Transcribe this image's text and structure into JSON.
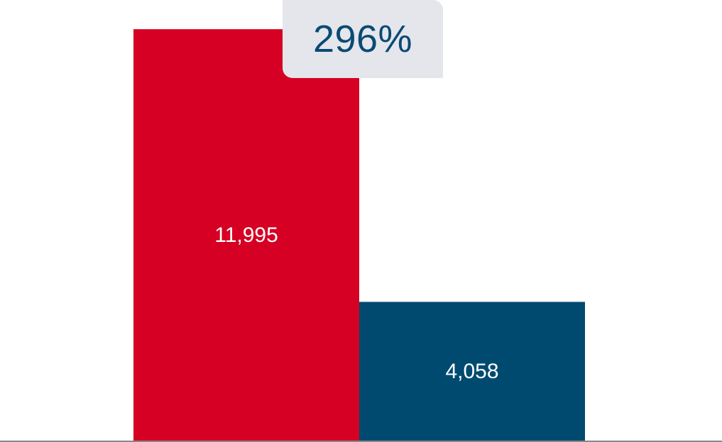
{
  "chart_data": {
    "type": "bar",
    "categories": [
      "",
      ""
    ],
    "values": [
      11995,
      4058
    ],
    "value_labels": [
      "11,995",
      "4,058"
    ],
    "colors": [
      "#d50023",
      "#004a70"
    ],
    "change_label": "296%",
    "title": "",
    "xlabel": "",
    "ylabel": "",
    "ylim": [
      0,
      12845
    ],
    "grid": false,
    "legend": "none"
  },
  "colors": {
    "badge_bg": "#e4e6ec",
    "badge_text": "#0a4a74",
    "axis": "#888888"
  }
}
